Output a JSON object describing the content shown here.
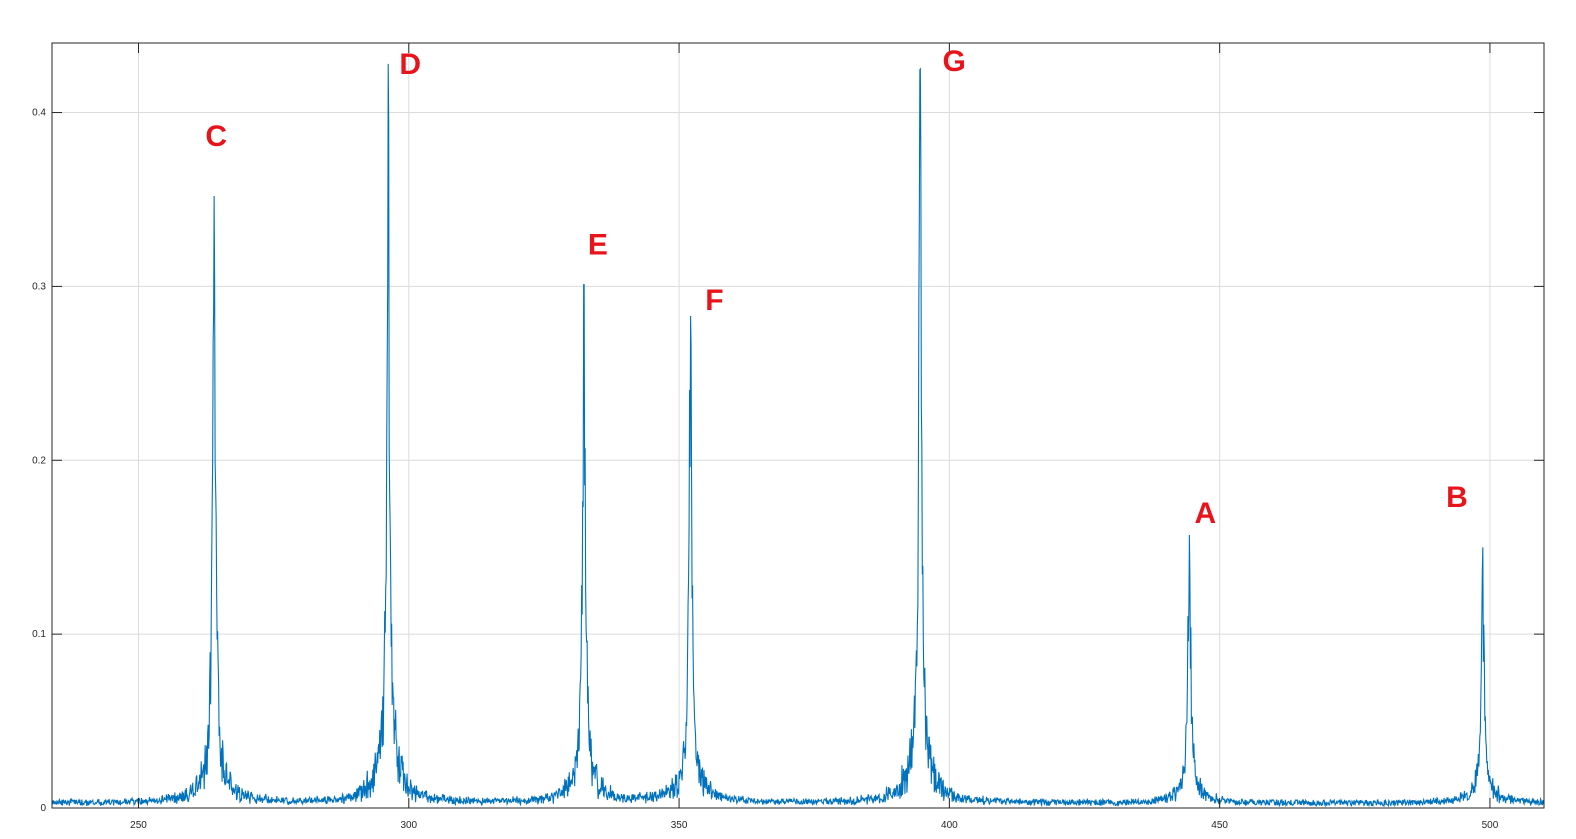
{
  "chart_data": {
    "type": "line",
    "title": "",
    "xlabel": "",
    "ylabel": "",
    "xlim": [
      234,
      510
    ],
    "ylim": [
      0,
      0.44
    ],
    "grid": true,
    "x_ticks": [
      250,
      300,
      350,
      400,
      450,
      500
    ],
    "y_ticks": [
      0,
      0.1,
      0.2,
      0.3,
      0.4
    ],
    "series_color": "#0072bd",
    "annotation_color": "#e8141b",
    "peaks": [
      {
        "note": "C",
        "x": 264.0,
        "y": 0.352
      },
      {
        "note": "D",
        "x": 296.2,
        "y": 0.428
      },
      {
        "note": "E",
        "x": 332.4,
        "y": 0.301
      },
      {
        "note": "F",
        "x": 352.1,
        "y": 0.283
      },
      {
        "note": "G",
        "x": 394.6,
        "y": 0.425
      },
      {
        "note": "A",
        "x": 444.4,
        "y": 0.157
      },
      {
        "note": "B",
        "x": 498.7,
        "y": 0.15
      }
    ]
  }
}
